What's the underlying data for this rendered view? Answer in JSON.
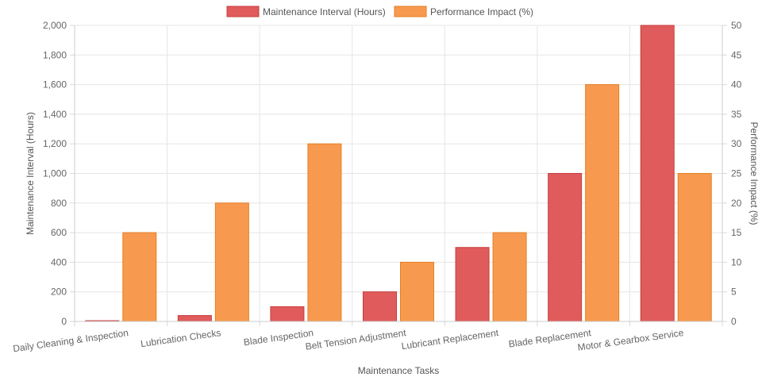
{
  "chart_data": {
    "type": "bar",
    "categories": [
      "Daily Cleaning & Inspection",
      "Lubrication Checks",
      "Blade Inspection",
      "Belt Tension Adjustment",
      "Lubricant Replacement",
      "Blade Replacement",
      "Motor & Gearbox Service"
    ],
    "series": [
      {
        "name": "Maintenance Interval (Hours)",
        "axis": "left",
        "color": "#e05c5c",
        "border_color": "#c93b3b",
        "values": [
          1,
          40,
          100,
          200,
          500,
          1000,
          2000
        ]
      },
      {
        "name": "Performance Impact (%)",
        "axis": "right",
        "color": "#f79a4f",
        "border_color": "#e67e22",
        "values": [
          15,
          20,
          30,
          10,
          15,
          40,
          25
        ]
      }
    ],
    "xlabel": "Maintenance Tasks",
    "ylabel": "Maintenance Interval (Hours)",
    "y2label": "Performance Impact (%)",
    "ylim": [
      0,
      2000
    ],
    "y2lim": [
      0,
      50
    ],
    "yticks": [
      "0",
      "200",
      "400",
      "600",
      "800",
      "1,000",
      "1,200",
      "1,400",
      "1,600",
      "1,800",
      "2,000"
    ],
    "y2ticks": [
      "0",
      "5",
      "10",
      "15",
      "20",
      "25",
      "30",
      "35",
      "40",
      "45",
      "50"
    ],
    "grid": true,
    "legend_position": "top"
  }
}
